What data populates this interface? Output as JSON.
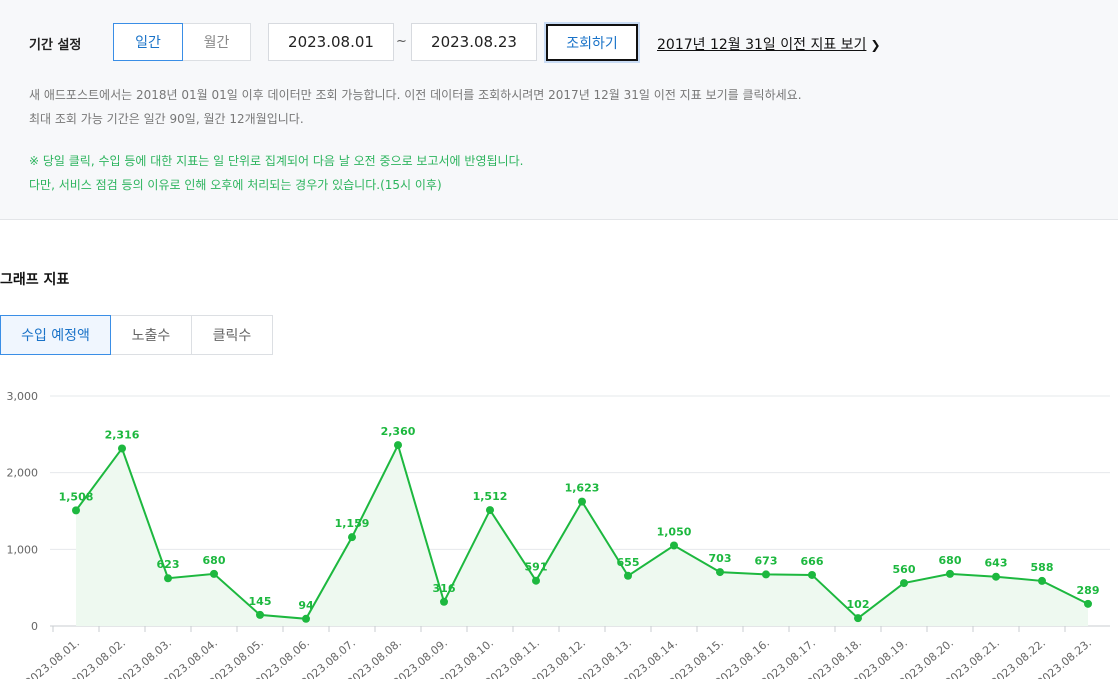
{
  "filter": {
    "period_label": "기간 설정",
    "daily_label": "일간",
    "monthly_label": "월간",
    "start_date": "2023.08.01",
    "end_date": "2023.08.23",
    "tilde": "~",
    "search_label": "조회하기",
    "old_link_label": "2017년 12월 31일 이전 지표 보기",
    "notice_line1": "새 애드포스트에서는 2018년 01월 01일 이후 데이터만 조회 가능합니다. 이전 데이터를 조회하시려면 2017년 12월 31일 이전 지표 보기를 클릭하세요.",
    "notice_line2": "최대 조회 가능 기간은 일간 90일, 월간 12개월입니다.",
    "notice_green1": "※ 당일 클릭, 수입 등에 대한 지표는 일 단위로 집계되어 다음 날 오전 중으로 보고서에 반영됩니다.",
    "notice_green2": "다만, 서비스 점검 등의 이유로 인해 오후에 처리되는 경우가 있습니다.(15시 이후)"
  },
  "graph": {
    "section_title": "그래프 지표",
    "tabs": [
      {
        "label": "수입 예정액"
      },
      {
        "label": "노출수"
      },
      {
        "label": "클릭수"
      }
    ]
  },
  "colors": {
    "accent_blue": "#1a73c8",
    "series_green": "#1db83f",
    "area_fill": "#eef9f0",
    "notice_green": "#2db45e"
  },
  "chart_data": {
    "type": "area",
    "x": [
      "2023.08.01.",
      "2023.08.02.",
      "2023.08.03.",
      "2023.08.04.",
      "2023.08.05.",
      "2023.08.06.",
      "2023.08.07.",
      "2023.08.08.",
      "2023.08.09.",
      "2023.08.10.",
      "2023.08.11.",
      "2023.08.12.",
      "2023.08.13.",
      "2023.08.14.",
      "2023.08.15.",
      "2023.08.16.",
      "2023.08.17.",
      "2023.08.18.",
      "2023.08.19.",
      "2023.08.20.",
      "2023.08.21.",
      "2023.08.22.",
      "2023.08.23."
    ],
    "values": [
      1508,
      2316,
      623,
      680,
      145,
      94,
      1159,
      2360,
      316,
      1512,
      591,
      1623,
      655,
      1050,
      703,
      673,
      666,
      102,
      560,
      680,
      643,
      588,
      289
    ],
    "y_ticks": [
      0,
      1000,
      2000,
      3000
    ],
    "y_tick_labels": [
      "0",
      "1,000",
      "2,000",
      "3,000"
    ],
    "ylim": [
      0,
      3000
    ],
    "grid": true
  }
}
